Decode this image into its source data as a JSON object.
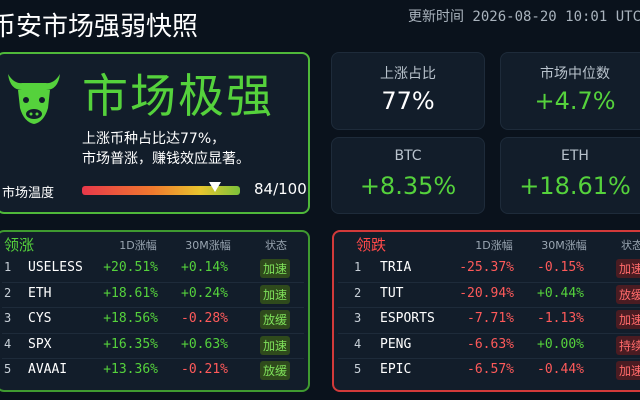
{
  "header": {
    "title": "币安市场强弱快照",
    "updated": "更新时间 2026-08-20 10:01 UTC"
  },
  "summary": {
    "level": "市场极强",
    "description": [
      "上涨币种占比达77%，",
      "市场普涨，赚钱效应显著。"
    ],
    "temperature_label": "市场温度",
    "temperature_score": "84/100"
  },
  "stats": [
    {
      "label": "上涨占比",
      "value": "77%"
    },
    {
      "label": "市场中位数",
      "value": "+4.7%"
    },
    {
      "label": "BTC",
      "value": "+8.35%"
    },
    {
      "label": "ETH",
      "value": "+18.61%"
    }
  ],
  "gainers": {
    "title": "领涨",
    "columns": [
      "1D涨幅",
      "30M涨幅",
      "状态"
    ],
    "rows": [
      [
        "1",
        "USELESS",
        "+20.51%",
        "+0.14%",
        "加速"
      ],
      [
        "2",
        "ETH",
        "+18.61%",
        "+0.24%",
        "加速"
      ],
      [
        "3",
        "CYS",
        "+18.56%",
        "-0.28%",
        "放缓"
      ],
      [
        "4",
        "SPX",
        "+16.35%",
        "+0.63%",
        "加速"
      ],
      [
        "5",
        "AVAAI",
        "+13.36%",
        "-0.21%",
        "放缓"
      ]
    ]
  },
  "losers": {
    "title": "领跌",
    "columns": [
      "1D涨幅",
      "30M涨幅",
      "状态"
    ],
    "rows": [
      [
        "1",
        "TRIA",
        "-25.37%",
        "-0.15%",
        "加速"
      ],
      [
        "2",
        "TUT",
        "-20.94%",
        "+0.44%",
        "放缓"
      ],
      [
        "3",
        "ESPORTS",
        "-7.71%",
        "-1.13%",
        "加速"
      ],
      [
        "4",
        "PENG",
        "-6.63%",
        "+0.00%",
        "持续"
      ],
      [
        "5",
        "EPIC",
        "-6.57%",
        "-0.44%",
        "加速"
      ]
    ]
  }
}
